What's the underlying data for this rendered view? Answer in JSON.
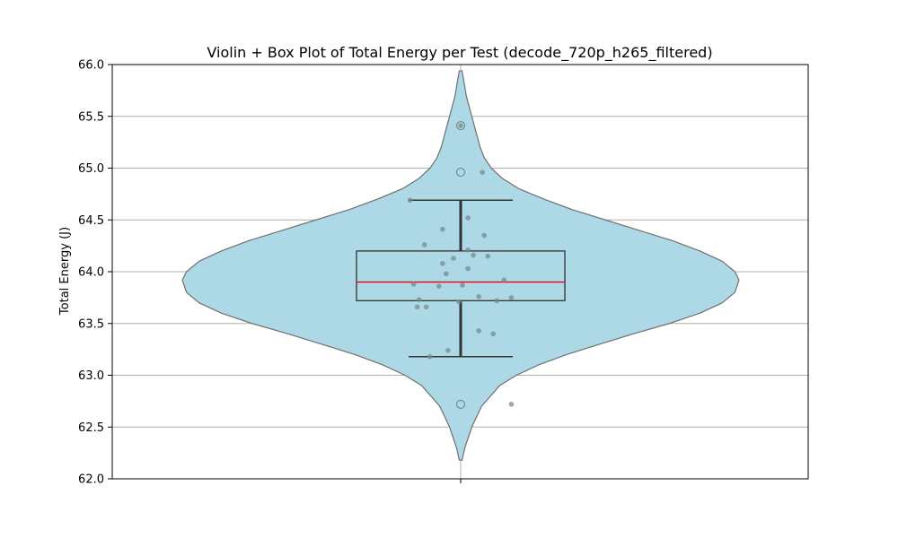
{
  "chart_data": {
    "type": "violin",
    "title": "Violin + Box Plot of Total Energy per Test (decode_720p_h265_filtered)",
    "xlabel": "",
    "ylabel": "Total Energy (J)",
    "ylim": [
      62.0,
      66.0
    ],
    "y_ticks": [
      "62.0",
      "62.5",
      "63.0",
      "63.5",
      "64.0",
      "64.5",
      "65.0",
      "65.5",
      "66.0"
    ],
    "grid": true,
    "colors": {
      "violin_fill": "#add8e6",
      "violin_edge": "#707070",
      "box_edge": "#333333",
      "median": "#e8000b",
      "points": "#7a8a8e",
      "grid": "#b0b0b0"
    },
    "violin_profile": [
      [
        62.18,
        0.005
      ],
      [
        62.3,
        0.015
      ],
      [
        62.5,
        0.04
      ],
      [
        62.7,
        0.075
      ],
      [
        62.9,
        0.14
      ],
      [
        63.0,
        0.2
      ],
      [
        63.1,
        0.28
      ],
      [
        63.2,
        0.38
      ],
      [
        63.3,
        0.5
      ],
      [
        63.4,
        0.62
      ],
      [
        63.5,
        0.75
      ],
      [
        63.6,
        0.86
      ],
      [
        63.7,
        0.94
      ],
      [
        63.8,
        0.985
      ],
      [
        63.92,
        1.0
      ],
      [
        64.0,
        0.985
      ],
      [
        64.1,
        0.94
      ],
      [
        64.2,
        0.86
      ],
      [
        64.3,
        0.76
      ],
      [
        64.4,
        0.64
      ],
      [
        64.5,
        0.52
      ],
      [
        64.6,
        0.4
      ],
      [
        64.7,
        0.3
      ],
      [
        64.8,
        0.21
      ],
      [
        64.9,
        0.15
      ],
      [
        65.0,
        0.11
      ],
      [
        65.1,
        0.085
      ],
      [
        65.2,
        0.07
      ],
      [
        65.3,
        0.06
      ],
      [
        65.4,
        0.05
      ],
      [
        65.5,
        0.04
      ],
      [
        65.6,
        0.03
      ],
      [
        65.7,
        0.02
      ],
      [
        65.8,
        0.014
      ],
      [
        65.94,
        0.005
      ]
    ],
    "box": {
      "q1": 63.72,
      "median": 63.9,
      "q3": 64.2,
      "whisker_low": 63.18,
      "whisker_high": 64.69
    },
    "outliers": [
      62.72,
      64.96,
      65.41
    ],
    "points": [
      {
        "jitter": -0.14,
        "y": 64.69
      },
      {
        "jitter": 0.06,
        "y": 64.96
      },
      {
        "jitter": 0.0,
        "y": 65.41
      },
      {
        "jitter": 0.02,
        "y": 64.52
      },
      {
        "jitter": -0.05,
        "y": 64.41
      },
      {
        "jitter": 0.065,
        "y": 64.35
      },
      {
        "jitter": -0.1,
        "y": 64.26
      },
      {
        "jitter": 0.02,
        "y": 64.21
      },
      {
        "jitter": 0.035,
        "y": 64.16
      },
      {
        "jitter": 0.075,
        "y": 64.15
      },
      {
        "jitter": -0.02,
        "y": 64.13
      },
      {
        "jitter": -0.05,
        "y": 64.08
      },
      {
        "jitter": 0.02,
        "y": 64.03
      },
      {
        "jitter": -0.04,
        "y": 63.98
      },
      {
        "jitter": 0.12,
        "y": 63.92
      },
      {
        "jitter": -0.13,
        "y": 63.88
      },
      {
        "jitter": 0.005,
        "y": 63.87
      },
      {
        "jitter": -0.06,
        "y": 63.86
      },
      {
        "jitter": 0.05,
        "y": 63.76
      },
      {
        "jitter": 0.14,
        "y": 63.75
      },
      {
        "jitter": -0.115,
        "y": 63.73
      },
      {
        "jitter": 0.1,
        "y": 63.72
      },
      {
        "jitter": -0.005,
        "y": 63.71
      },
      {
        "jitter": -0.12,
        "y": 63.66
      },
      {
        "jitter": -0.095,
        "y": 63.66
      },
      {
        "jitter": 0.05,
        "y": 63.43
      },
      {
        "jitter": 0.09,
        "y": 63.4
      },
      {
        "jitter": -0.035,
        "y": 63.24
      },
      {
        "jitter": -0.085,
        "y": 63.18
      },
      {
        "jitter": 0.14,
        "y": 62.72
      }
    ]
  }
}
